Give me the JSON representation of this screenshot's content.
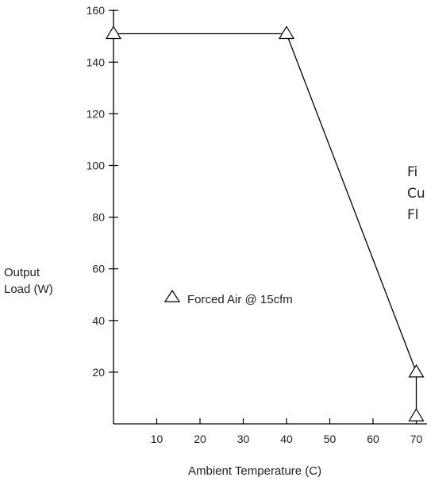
{
  "chart_data": {
    "type": "line",
    "xlabel": "Ambient Temperature (C)",
    "ylabel_lines": [
      "Output",
      "Load (W)"
    ],
    "xlim": [
      0,
      72
    ],
    "ylim": [
      0,
      170
    ],
    "x_ticks": [
      10,
      20,
      30,
      40,
      50,
      60,
      70
    ],
    "y_ticks": [
      20,
      40,
      60,
      80,
      100,
      120,
      140,
      160
    ],
    "grid": false,
    "legend_position": "center-left",
    "series": [
      {
        "name": "Forced Air @ 15cfm",
        "marker": "triangle-open",
        "color": "#000000",
        "points": [
          {
            "x": 0,
            "y": 151
          },
          {
            "x": 40,
            "y": 151
          },
          {
            "x": 70,
            "y": 20
          },
          {
            "x": 70,
            "y": 3
          }
        ]
      }
    ],
    "side_text_fragments": [
      "Fi",
      "Cu",
      "Fl"
    ]
  }
}
